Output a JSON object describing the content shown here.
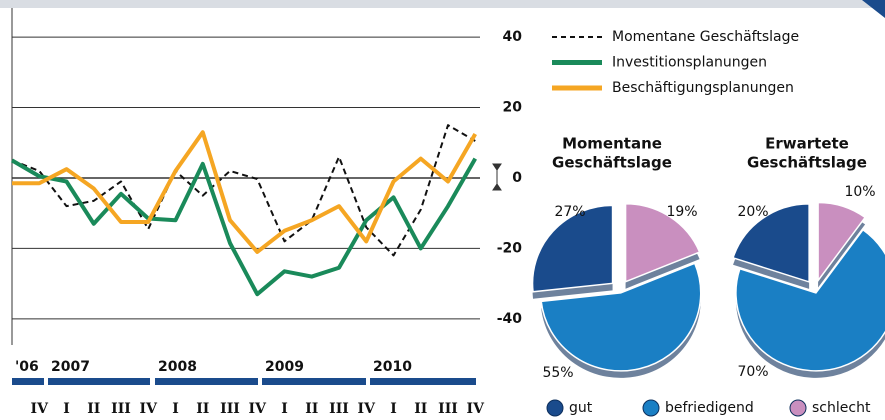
{
  "chart_data": [
    {
      "type": "line",
      "categories": [
        null,
        "IV",
        "I",
        "II",
        "III",
        "IV",
        "I",
        "II",
        "III",
        "IV",
        "I",
        "II",
        "III",
        "IV",
        "I",
        "II",
        "III",
        "IV"
      ],
      "years": [
        "'06",
        "2007",
        "2008",
        "2009",
        "2010"
      ],
      "ylim": [
        -48,
        46
      ],
      "yticks": [
        40,
        20,
        0,
        -20,
        -40
      ],
      "grid": true,
      "series": [
        {
          "name": "Momentane Geschäftslage",
          "color": "#111111",
          "dash": true,
          "values": [
            5,
            2,
            -8,
            -6.5,
            -1,
            -14.5,
            2,
            -5,
            2,
            -0.3,
            -18,
            -12,
            6,
            -14,
            -22,
            -9,
            15,
            10.5
          ]
        },
        {
          "name": "Investitionsplanungen",
          "color": "#1a8a5a",
          "values": [
            5,
            0.5,
            -1,
            -13,
            -4.5,
            -11.5,
            -12,
            4,
            -18.5,
            -33,
            -26.5,
            -28,
            -25.5,
            -12,
            -5.5,
            -20,
            -8,
            5.5
          ]
        },
        {
          "name": "Beschäftigungsplanungen",
          "color": "#f5a623",
          "values": [
            -1.5,
            -1.5,
            2.5,
            -3,
            -12.5,
            -12.5,
            2,
            13,
            -12,
            -21,
            -15,
            -12,
            -8,
            -18,
            -1,
            5.5,
            -1,
            12.5
          ]
        }
      ]
    },
    {
      "type": "pie",
      "title": [
        "Momentane",
        "Geschäftslage"
      ],
      "categories": [
        "gut",
        "befriedigend",
        "schlecht"
      ],
      "colors": [
        "#1a4b8c",
        "#1a7fc4",
        "#c98fbf"
      ],
      "values": [
        27,
        55,
        19
      ],
      "value_labels": [
        "27%",
        "55%",
        "19%"
      ]
    },
    {
      "type": "pie",
      "title": [
        "Erwartete",
        "Geschäftslage"
      ],
      "categories": [
        "gut",
        "befriedigend",
        "schlecht"
      ],
      "colors": [
        "#1a4b8c",
        "#1a7fc4",
        "#c98fbf"
      ],
      "values": [
        20,
        70,
        10
      ],
      "value_labels": [
        "20%",
        "70%",
        "10%"
      ]
    }
  ]
}
